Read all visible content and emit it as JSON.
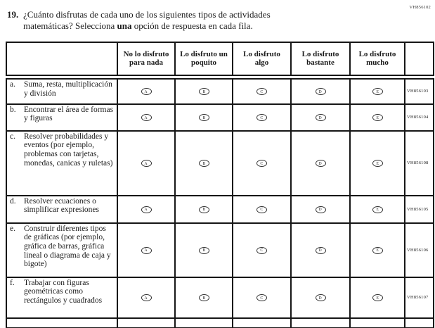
{
  "page_code": "VH856102",
  "question": {
    "number": "19.",
    "text_before_bold": "¿Cuánto disfrutas de cada uno de los siguientes tipos de actividades matemáticas? Selecciona ",
    "bold_word": "una",
    "text_after_bold": " opción de respuesta en cada fila."
  },
  "table": {
    "column_headers": [
      "No lo disfruto para nada",
      "Lo disfruto un poquito",
      "Lo disfruto algo",
      "Lo disfruto bastante",
      "Lo disfruto mucho"
    ],
    "option_letters": [
      "A",
      "B",
      "C",
      "D",
      "E"
    ],
    "rows": [
      {
        "letter": "a.",
        "label": "Suma, resta, multiplicación y división",
        "code": "VH856103"
      },
      {
        "letter": "b.",
        "label": "Encontrar el área de formas y figuras",
        "code": "VH856104"
      },
      {
        "letter": "c.",
        "label": "Resolver probabilidades y eventos (por ejemplo, problemas con tarjetas, monedas, canicas y ruletas)",
        "code": "VH856108"
      },
      {
        "letter": "d.",
        "label": "Resolver ecuaciones o simplificar expresiones",
        "code": "VH856105"
      },
      {
        "letter": "e.",
        "label": "Construir diferentes tipos de gráficas (por ejemplo, gráfica de barras, gráfica lineal o diagrama de caja y bigote)",
        "code": "VH856106"
      },
      {
        "letter": "f.",
        "label": "Trabajar con figuras geométricas como rectángulos y cuadrados",
        "code": "VH856107"
      }
    ]
  }
}
